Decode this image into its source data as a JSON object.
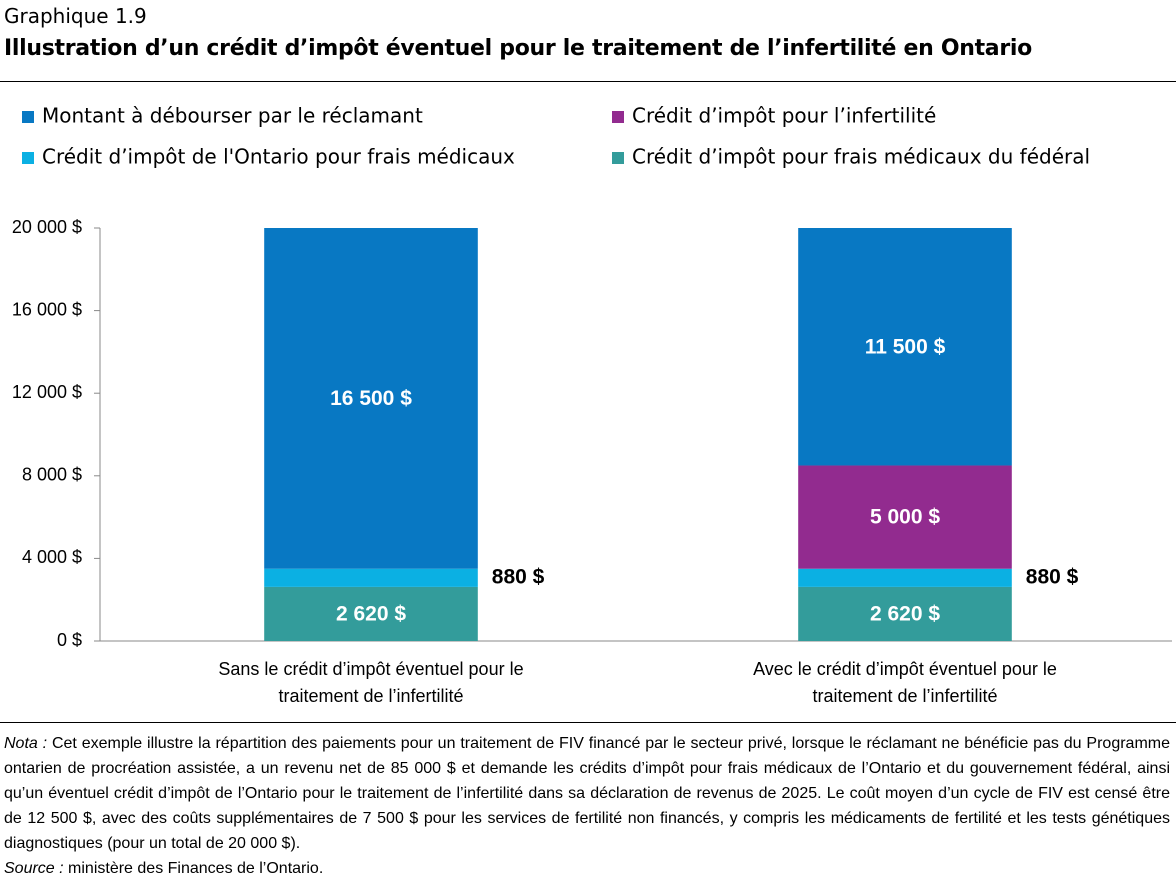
{
  "chart_data": {
    "type": "stacked_bar",
    "label": "Graphique 1.9",
    "title": "Illustration d’un crédit d’impôt éventuel pour le traitement de l’infertilité en Ontario",
    "categories": [
      "Sans le crédit d’impôt éventuel pour le traitement de l’infertilité",
      "Avec le crédit d’impôt éventuel pour le traitement de l’infertilité"
    ],
    "series": [
      {
        "name": "Crédit d’impôt pour frais médicaux du fédéral",
        "color": "#339c9b",
        "values": [
          2620,
          2620
        ],
        "value_labels": [
          "2 620 $",
          "2 620 $"
        ]
      },
      {
        "name": "Crédit d’impôt de l'Ontario pour frais médicaux",
        "color": "#0bb0e3",
        "values": [
          880,
          880
        ],
        "value_labels": [
          "880 $",
          "880 $"
        ]
      },
      {
        "name": "Crédit d’impôt pour l’infertilité",
        "color": "#922b8f",
        "values": [
          null,
          5000
        ],
        "value_labels": [
          null,
          "5 000 $"
        ]
      },
      {
        "name": "Montant à débourser par le réclamant",
        "color": "#0878c3",
        "values": [
          16500,
          11500
        ],
        "value_labels": [
          "16 500 $",
          "11 500 $"
        ]
      }
    ],
    "legend_order": [
      3,
      2,
      1,
      0
    ],
    "ylim": [
      0,
      20000
    ],
    "yticks": [
      {
        "value": 0,
        "label": "0 $"
      },
      {
        "value": 4000,
        "label": "4 000 $"
      },
      {
        "value": 8000,
        "label": "8 000 $"
      },
      {
        "value": 12000,
        "label": "12 000 $"
      },
      {
        "value": 16000,
        "label": "16 000 $"
      },
      {
        "value": 20000,
        "label": "20 000 $"
      }
    ],
    "grid": false,
    "note": {
      "label": "Nota :",
      "text": "Cet exemple illustre la répartition des paiements pour un traitement de FIV financé par le secteur privé, lorsque le réclamant ne bénéficie pas du Programme ontarien de procréation assistée, a un revenu net de 85 000 $ et demande les crédits d’impôt pour frais médicaux de l’Ontario et du gouvernement fédéral, ainsi qu’un éventuel crédit d’impôt de l’Ontario pour le traitement de l’infertilité dans sa déclaration de revenus de 2025. Le coût moyen d’un cycle de FIV est censé être de 12 500 $, avec des coûts supplémentaires de 7 500 $ pour les services de fertilité non financés, y compris les médicaments de fertilité et les tests génétiques diagnostiques (pour un total de 20 000 $)."
    },
    "source": {
      "label": "Source :",
      "text": "ministère des Finances de l’Ontario."
    }
  }
}
